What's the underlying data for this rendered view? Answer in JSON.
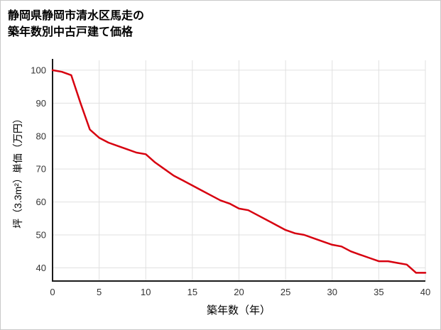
{
  "page": {
    "background": "#ffffff",
    "border_color": "#c9c9c9"
  },
  "chart_data": {
    "type": "line",
    "title_line1": "静岡県静岡市清水区馬走の",
    "title_line2": "築年数別中古戸建て価格",
    "xlabel": "築年数（年）",
    "ylabel": "坪（3.3m²）単価（万円）",
    "x": [
      0,
      1,
      2,
      3,
      4,
      5,
      6,
      7,
      8,
      9,
      10,
      11,
      12,
      13,
      14,
      15,
      16,
      17,
      18,
      19,
      20,
      21,
      22,
      23,
      24,
      25,
      26,
      27,
      28,
      29,
      30,
      31,
      32,
      33,
      34,
      35,
      36,
      37,
      38,
      39,
      40
    ],
    "values": [
      100,
      99.5,
      98.5,
      90,
      82,
      79.5,
      78,
      77,
      76,
      75,
      74.5,
      72,
      70,
      68,
      66.5,
      65,
      63.5,
      62,
      60.5,
      59.5,
      58,
      57.5,
      56,
      54.5,
      53,
      51.5,
      50.5,
      50,
      49,
      48,
      47,
      46.5,
      45,
      44,
      43,
      42,
      42,
      41.5,
      41,
      38.5,
      38.5
    ],
    "xlim": [
      0,
      40
    ],
    "ylim": [
      36,
      103
    ],
    "xticks": [
      0,
      5,
      10,
      15,
      20,
      25,
      30,
      35,
      40
    ],
    "yticks": [
      40,
      50,
      60,
      70,
      80,
      90,
      100
    ],
    "grid": true,
    "legend": false,
    "line_color": "#d7000f",
    "axis_color": "#1a1a1a",
    "grid_color": "#e0e0e0",
    "tick_label_color": "#333333"
  }
}
